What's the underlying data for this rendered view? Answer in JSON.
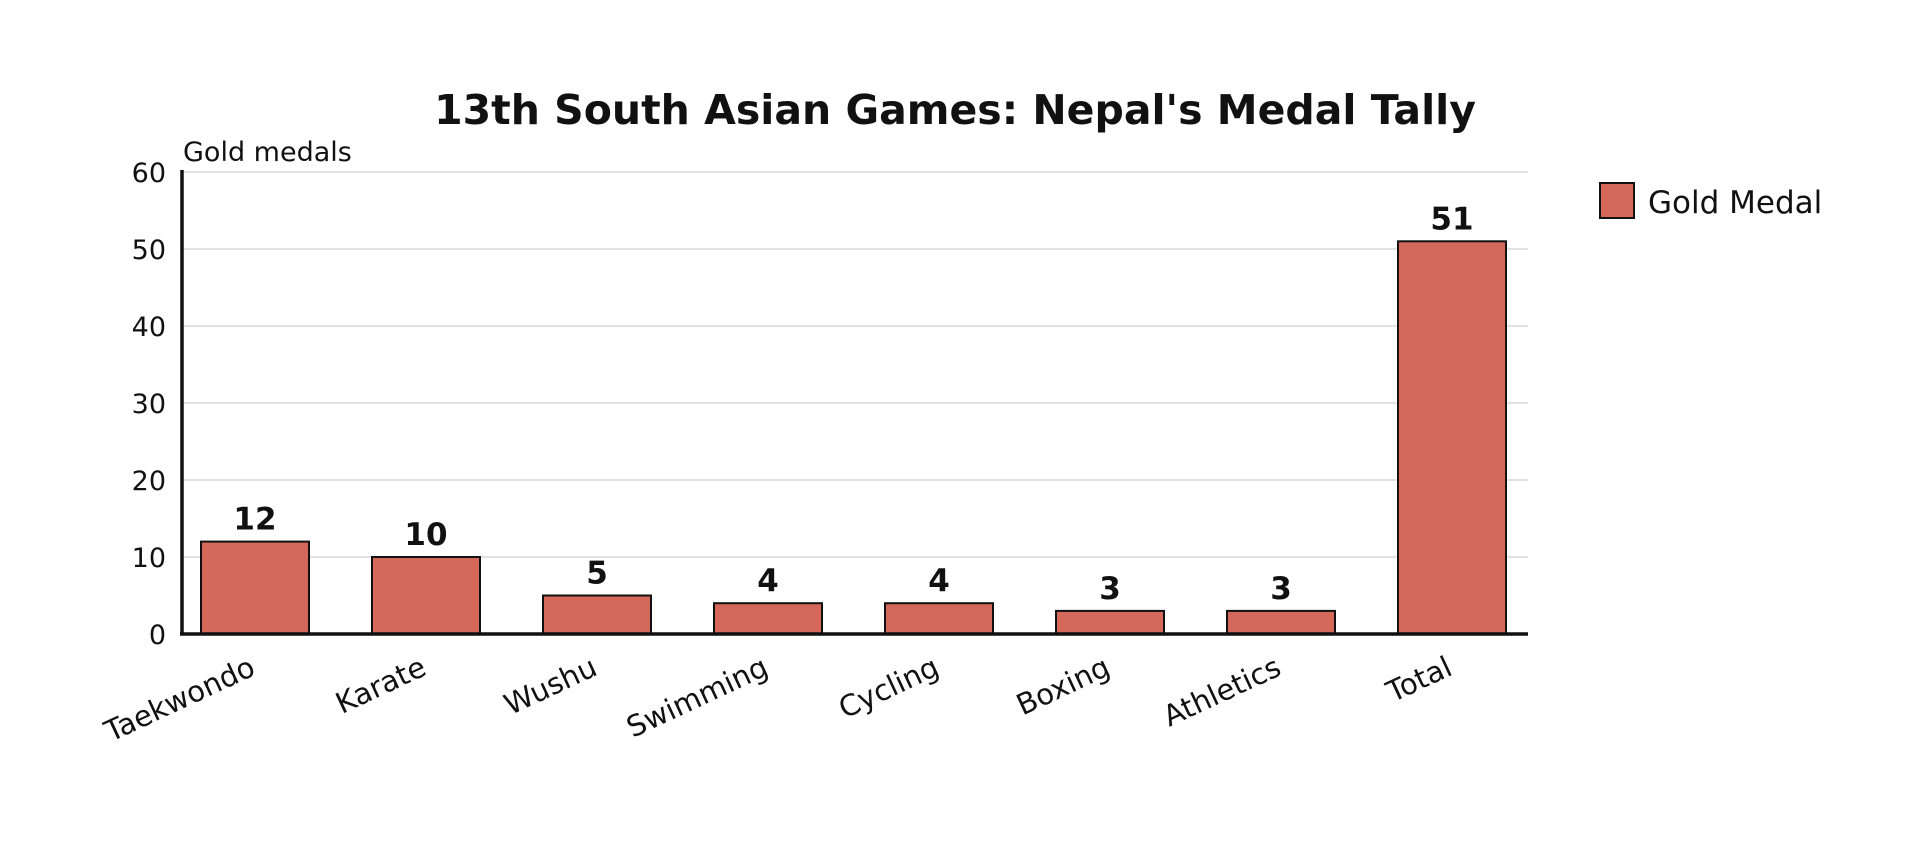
{
  "chart_data": {
    "type": "bar",
    "title": "13th South Asian Games: Nepal's Medal Tally",
    "ylabel": "Gold medals",
    "xlabel": "",
    "categories": [
      "Taekwondo",
      "Karate",
      "Wushu",
      "Swimming",
      "Cycling",
      "Boxing",
      "Athletics",
      "Total"
    ],
    "series": [
      {
        "name": "Gold Medal",
        "values": [
          12,
          10,
          5,
          4,
          4,
          3,
          3,
          51
        ],
        "color": "#d4685a"
      }
    ],
    "ylim": [
      0,
      60
    ],
    "yticks": [
      0,
      10,
      20,
      30,
      40,
      50,
      60
    ],
    "grid": true,
    "legend_position": "top-right",
    "data_labels": true
  }
}
